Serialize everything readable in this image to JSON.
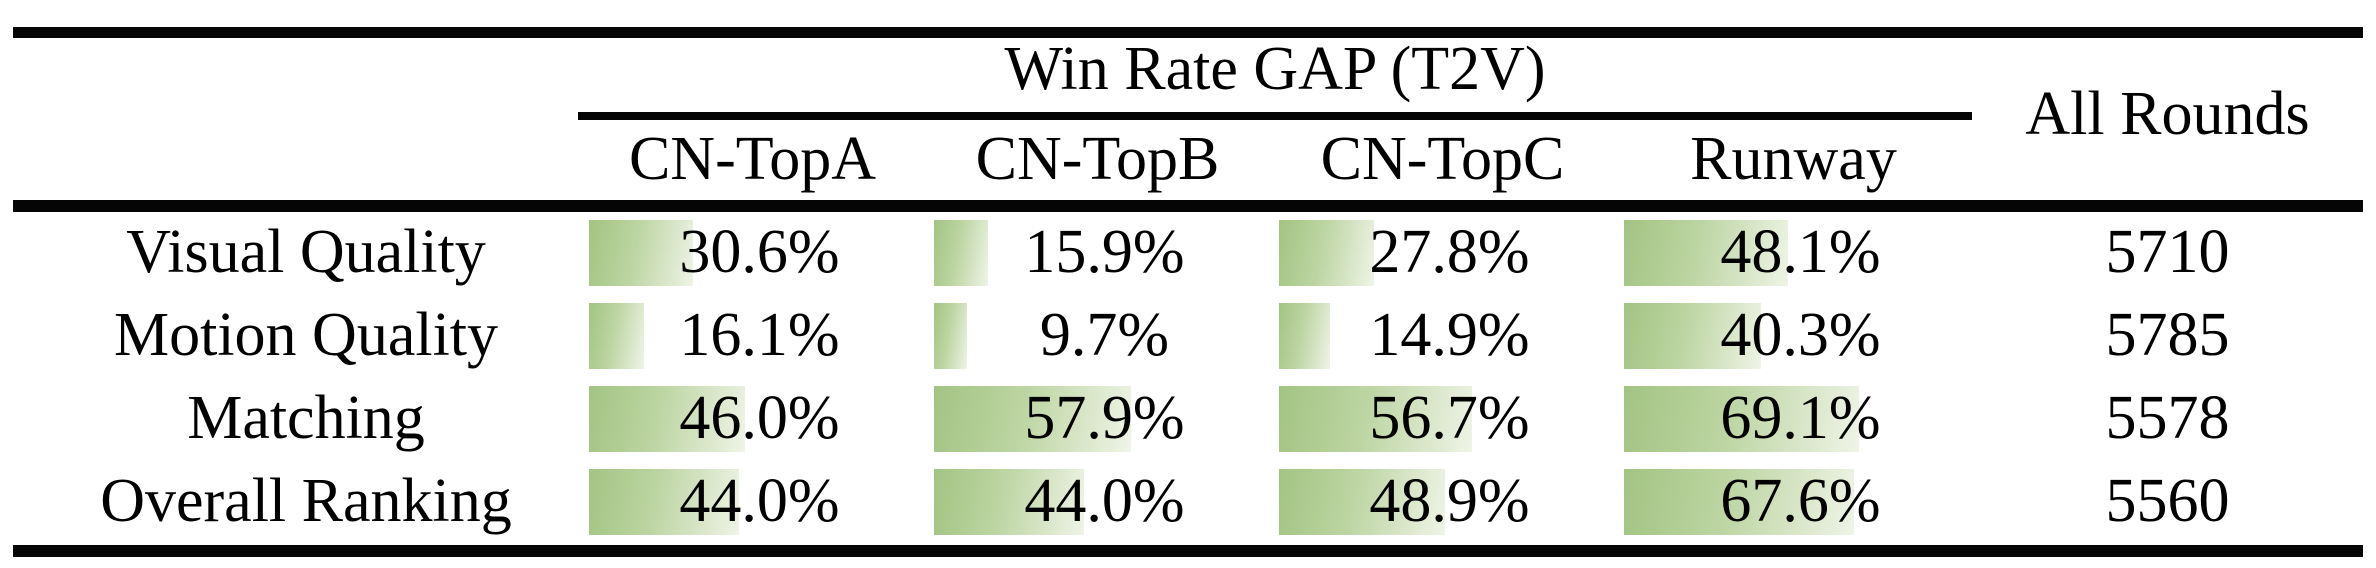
{
  "table": {
    "title": "Win Rate GAP (T2V)",
    "all_rounds_header": "All Rounds",
    "columns": [
      "CN-TopA",
      "CN-TopB",
      "CN-TopC",
      "Runway"
    ],
    "rows": [
      {
        "label": "Visual Quality",
        "cells": [
          {
            "text": "30.6%",
            "percent": 30.6
          },
          {
            "text": "15.9%",
            "percent": 15.9
          },
          {
            "text": "27.8%",
            "percent": 27.8
          },
          {
            "text": "48.1%",
            "percent": 48.1
          }
        ],
        "all_rounds": "5710"
      },
      {
        "label": "Motion Quality",
        "cells": [
          {
            "text": "16.1%",
            "percent": 16.1
          },
          {
            "text": "9.7%",
            "percent": 9.7
          },
          {
            "text": "14.9%",
            "percent": 14.9
          },
          {
            "text": "40.3%",
            "percent": 40.3
          }
        ],
        "all_rounds": "5785"
      },
      {
        "label": "Matching",
        "cells": [
          {
            "text": "46.0%",
            "percent": 46.0
          },
          {
            "text": "57.9%",
            "percent": 57.9
          },
          {
            "text": "56.7%",
            "percent": 56.7
          },
          {
            "text": "69.1%",
            "percent": 69.1
          }
        ],
        "all_rounds": "5578"
      },
      {
        "label": "Overall Ranking",
        "cells": [
          {
            "text": "44.0%",
            "percent": 44.0
          },
          {
            "text": "44.0%",
            "percent": 44.0
          },
          {
            "text": "48.9%",
            "percent": 48.9
          },
          {
            "text": "67.6%",
            "percent": 67.6
          }
        ],
        "all_rounds": "5560"
      }
    ],
    "bar_color_left": "#a2c482",
    "bar_color_right": "#eff4e7"
  },
  "chart_data": {
    "type": "table",
    "title": "Win Rate GAP (T2V)",
    "columns": [
      "CN-TopA",
      "CN-TopB",
      "CN-TopC",
      "Runway",
      "All Rounds"
    ],
    "row_labels": [
      "Visual Quality",
      "Motion Quality",
      "Matching",
      "Overall Ranking"
    ],
    "series": [
      {
        "name": "CN-TopA",
        "values": [
          30.6,
          16.1,
          46.0,
          44.0
        ]
      },
      {
        "name": "CN-TopB",
        "values": [
          15.9,
          9.7,
          57.9,
          44.0
        ]
      },
      {
        "name": "CN-TopC",
        "values": [
          27.8,
          14.9,
          56.7,
          48.9
        ]
      },
      {
        "name": "Runway",
        "values": [
          48.1,
          40.3,
          69.1,
          67.6
        ]
      },
      {
        "name": "All Rounds",
        "values": [
          5710,
          5785,
          5578,
          5560
        ]
      }
    ],
    "value_unit": "% (win rate gap); All Rounds is a count",
    "layout": "data bars behind percentage cells, bar length proportional to value, green gradient fill"
  }
}
